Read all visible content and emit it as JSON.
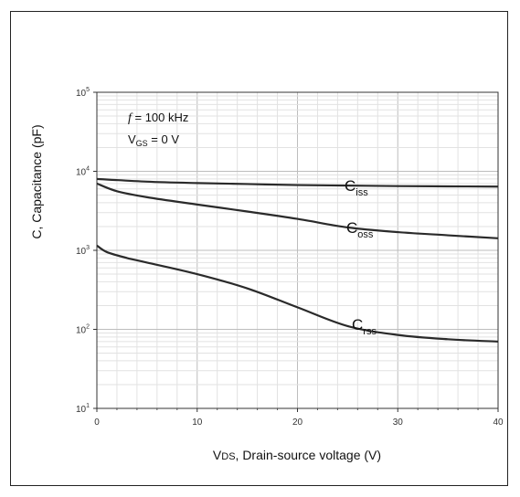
{
  "chart_data": {
    "type": "line",
    "title": "",
    "xlabel_prefix": "V",
    "xlabel_sub": "DS",
    "xlabel_rest": ", Drain-source voltage (V)",
    "ylabel": "C, Capacitance (pF)",
    "xlim": [
      0,
      40
    ],
    "ylim": [
      10,
      100000
    ],
    "yscale": "log",
    "grid": true,
    "x_ticks": [
      "0",
      "10",
      "20",
      "30",
      "40"
    ],
    "y_tick_exponents": [
      "1",
      "2",
      "3",
      "4",
      "5"
    ],
    "y_tick_base": "10",
    "annotations": {
      "freq_prefix": "f",
      "freq_rest": " = 100 kHz",
      "vgs_prefix": "V",
      "vgs_sub": "GS",
      "vgs_rest": " = 0 V"
    },
    "series": [
      {
        "name": "C",
        "sub": "iss",
        "x": [
          0,
          5,
          10,
          15,
          20,
          25,
          30,
          35,
          40
        ],
        "y": [
          8000,
          7400,
          7100,
          6900,
          6700,
          6600,
          6500,
          6450,
          6400
        ]
      },
      {
        "name": "C",
        "sub": "oss",
        "x": [
          0,
          2,
          5,
          10,
          15,
          20,
          25,
          30,
          35,
          40
        ],
        "y": [
          7000,
          5600,
          4700,
          3800,
          3100,
          2500,
          1950,
          1700,
          1550,
          1420
        ]
      },
      {
        "name": "C",
        "sub": "rss",
        "x": [
          0,
          1,
          3,
          5,
          10,
          15,
          20,
          25,
          30,
          35,
          40
        ],
        "y": [
          1150,
          950,
          800,
          700,
          500,
          330,
          190,
          110,
          85,
          75,
          70
        ]
      }
    ]
  }
}
